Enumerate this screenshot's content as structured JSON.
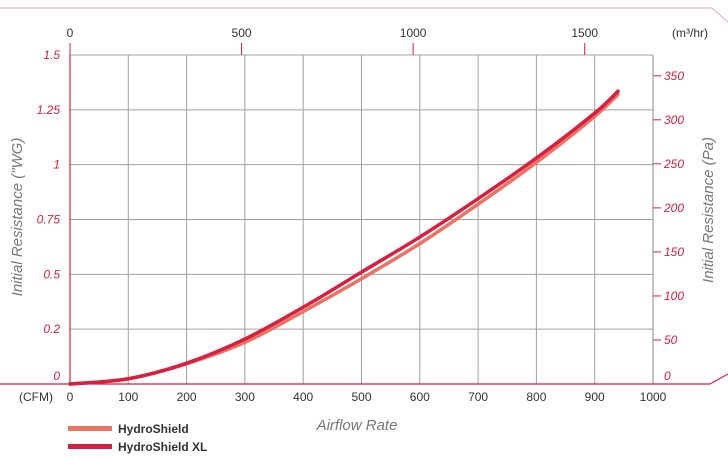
{
  "chart_data": {
    "type": "line",
    "title": "",
    "xlabel": "Airflow Rate",
    "x_unit_label": "(CFM)",
    "x_ticks": [
      0,
      100,
      200,
      300,
      400,
      500,
      600,
      700,
      800,
      900,
      1000
    ],
    "xlim": [
      0,
      1000
    ],
    "x_top_unit_label": "(m³/hr)",
    "x_top_ticks": [
      0,
      500,
      1000,
      1500
    ],
    "x_top_lim": [
      0,
      1699
    ],
    "ylabel": "Initial Resistance (\"WG)",
    "y_tick_labels": [
      "0",
      "0.2",
      "0.5",
      "0.75",
      "1",
      "1.25",
      "1.5"
    ],
    "ylim": [
      0,
      1.5
    ],
    "y2label": "Initial Resistance (Pa)",
    "y2_ticks": [
      0,
      50,
      100,
      150,
      200,
      250,
      300,
      350
    ],
    "y2lim": [
      0,
      373.6
    ],
    "grid": true,
    "legend_position": "bottom-left",
    "series": [
      {
        "name": "HydroShield",
        "color": "#ec7264",
        "x": [
          0,
          100,
          200,
          300,
          400,
          500,
          600,
          700,
          800,
          900,
          940
        ],
        "y": [
          0.0,
          0.024,
          0.092,
          0.19,
          0.33,
          0.48,
          0.64,
          0.82,
          1.01,
          1.22,
          1.32
        ]
      },
      {
        "name": "HydroShield XL",
        "color": "#d71f3f",
        "x": [
          0,
          100,
          200,
          300,
          400,
          500,
          600,
          700,
          800,
          900,
          940
        ],
        "y": [
          0.0,
          0.024,
          0.095,
          0.205,
          0.35,
          0.51,
          0.67,
          0.845,
          1.03,
          1.235,
          1.335
        ]
      }
    ]
  }
}
